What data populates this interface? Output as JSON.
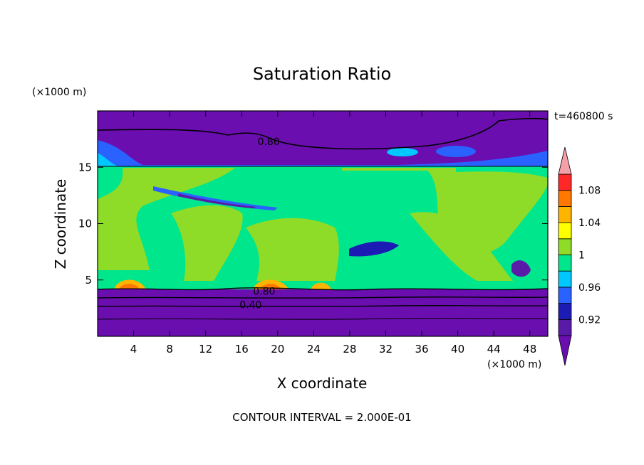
{
  "chart_data": {
    "type": "heatmap",
    "title": "Saturation Ratio",
    "xlabel": "X coordinate",
    "ylabel": "Z coordinate",
    "x_unit": "(×1000 m)",
    "y_unit": "(×1000 m)",
    "time_label": "t=460800 s",
    "footer": "CONTOUR INTERVAL = 2.000E-01",
    "xlim": [
      0,
      50
    ],
    "ylim": [
      0,
      20
    ],
    "x_ticks": [
      4,
      8,
      12,
      16,
      20,
      24,
      28,
      32,
      36,
      40,
      44,
      48
    ],
    "y_ticks": [
      5,
      10,
      15
    ],
    "contour_labels": [
      {
        "text": "0.80",
        "x": 19,
        "y": 17.3
      },
      {
        "text": "0.80",
        "x": 18.5,
        "y": 4.0
      },
      {
        "text": "0.40",
        "x": 17,
        "y": 2.8
      }
    ],
    "colorbar": {
      "levels": [
        0.9,
        0.92,
        0.94,
        0.96,
        0.98,
        1.0,
        1.02,
        1.04,
        1.06,
        1.08,
        1.1
      ],
      "tick_labels": [
        "0.92",
        "0.96",
        "1",
        "1.04",
        "1.08"
      ],
      "tick_values": [
        0.92,
        0.96,
        1.0,
        1.04,
        1.08
      ],
      "colors": [
        "#5a1aa8",
        "#1c1cb4",
        "#2a62ff",
        "#00c8ff",
        "#00e68c",
        "#8edc28",
        "#ffff00",
        "#ffb400",
        "#ff7800",
        "#ff2828"
      ],
      "under_color": "#6a0eb0",
      "over_color": "#f4a0a8"
    }
  }
}
